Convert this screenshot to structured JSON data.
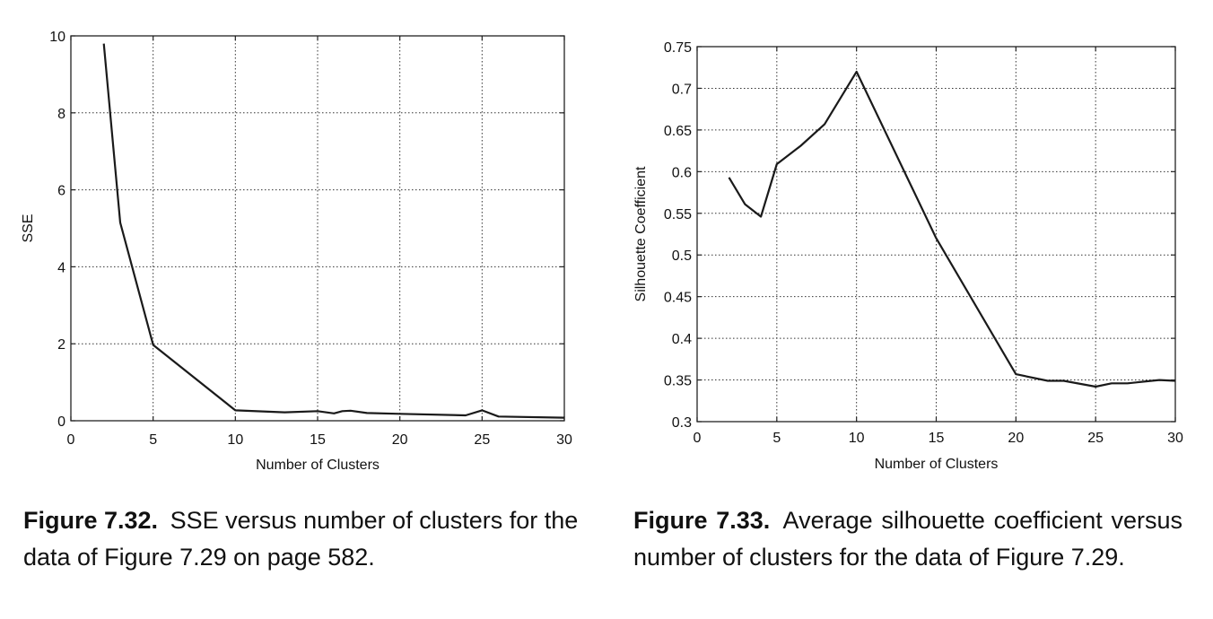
{
  "chart_data": [
    {
      "type": "line",
      "title": "",
      "xlabel": "Number of Clusters",
      "ylabel": "SSE",
      "xlim": [
        0,
        30
      ],
      "ylim": [
        0,
        10
      ],
      "xticks": [
        0,
        5,
        10,
        15,
        20,
        25,
        30
      ],
      "yticks": [
        0,
        2,
        4,
        6,
        8,
        10
      ],
      "grid": true,
      "x": [
        2,
        3,
        5,
        10,
        13,
        15,
        16,
        16.5,
        17,
        18,
        20,
        24,
        25,
        26,
        30
      ],
      "y": [
        9.8,
        5.15,
        1.97,
        0.27,
        0.22,
        0.25,
        0.19,
        0.25,
        0.26,
        0.2,
        0.18,
        0.14,
        0.27,
        0.11,
        0.08
      ]
    },
    {
      "type": "line",
      "title": "",
      "xlabel": "Number of Clusters",
      "ylabel": "Silhouette Coefficient",
      "xlim": [
        0,
        30
      ],
      "ylim": [
        0.3,
        0.75
      ],
      "xticks": [
        0,
        5,
        10,
        15,
        20,
        25,
        30
      ],
      "yticks": [
        0.3,
        0.35,
        0.4,
        0.45,
        0.5,
        0.55,
        0.6,
        0.65,
        0.7,
        0.75
      ],
      "ytick_labels": [
        "0.3",
        "0.35",
        "0.4",
        "0.45",
        "0.5",
        "0.55",
        "0.6",
        "0.65",
        "0.7",
        "0.75"
      ],
      "grid": true,
      "x": [
        2,
        3,
        4,
        5,
        6.5,
        8,
        10,
        15,
        20,
        22,
        23,
        25,
        26,
        27,
        29,
        30
      ],
      "y": [
        0.593,
        0.561,
        0.546,
        0.609,
        0.631,
        0.657,
        0.72,
        0.52,
        0.357,
        0.349,
        0.349,
        0.342,
        0.346,
        0.346,
        0.35,
        0.349
      ]
    }
  ],
  "captions": [
    {
      "label": "Figure 7.32.",
      "text": "SSE versus number of clusters for the data of Figure 7.29 on page 582."
    },
    {
      "label": "Figure 7.33.",
      "text": "Average silhouette coefficient versus number of clusters for the data of Figure 7.29."
    }
  ]
}
